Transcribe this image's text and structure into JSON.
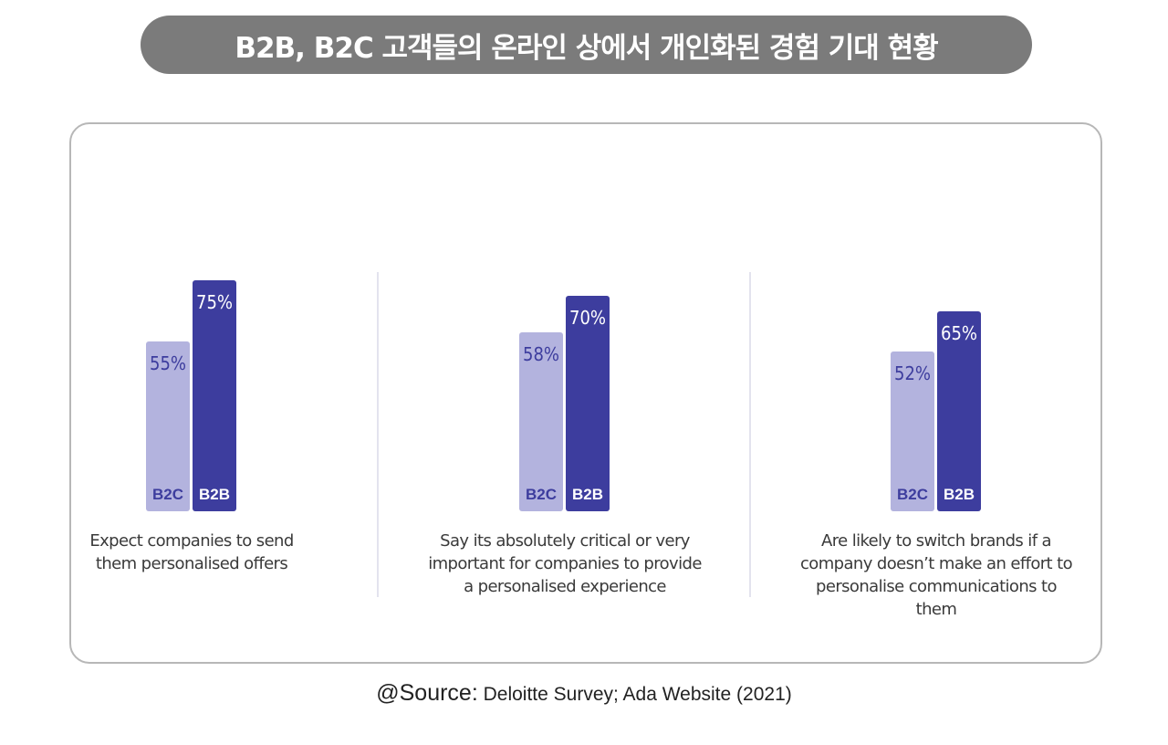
{
  "title": "B2B, B2C 고객들의 온라인 상에서 개인화된 경험 기대 현황",
  "colors": {
    "b2c_bar": "#b3b3de",
    "b2b_bar": "#3d3d9e",
    "b2c_label": "#3d3d9e",
    "b2b_label": "#ffffff",
    "title_bg": "#7b7b7b"
  },
  "chart_data": [
    {
      "type": "bar",
      "categories": [
        "B2C",
        "B2B"
      ],
      "values": [
        55,
        75
      ],
      "value_labels": [
        "55%",
        "75%"
      ],
      "caption": "Expect companies to send them personalised offers",
      "caption_lines": [
        "Expect companies to send",
        "them personalised offers"
      ]
    },
    {
      "type": "bar",
      "categories": [
        "B2C",
        "B2B"
      ],
      "values": [
        58,
        70
      ],
      "value_labels": [
        "58%",
        "70%"
      ],
      "caption": "Say its absolutely critical or very important for companies to provide a personalised experience",
      "caption_lines": [
        "Say its absolutely critical or very",
        "important for companies to provide",
        "a personalised experience"
      ]
    },
    {
      "type": "bar",
      "categories": [
        "B2C",
        "B2B"
      ],
      "values": [
        52,
        65
      ],
      "value_labels": [
        "52%",
        "65%"
      ],
      "caption": "Are likely to switch brands if a company doesn't make an effort to personalise communications to them",
      "caption_lines": [
        "Are likely to switch brands if a",
        "company doesn’t make an effort to",
        "personalise communications to them"
      ]
    }
  ],
  "source": {
    "prefix": "@Source:",
    "text": " Deloitte Survey; Ada Website (2021)"
  }
}
